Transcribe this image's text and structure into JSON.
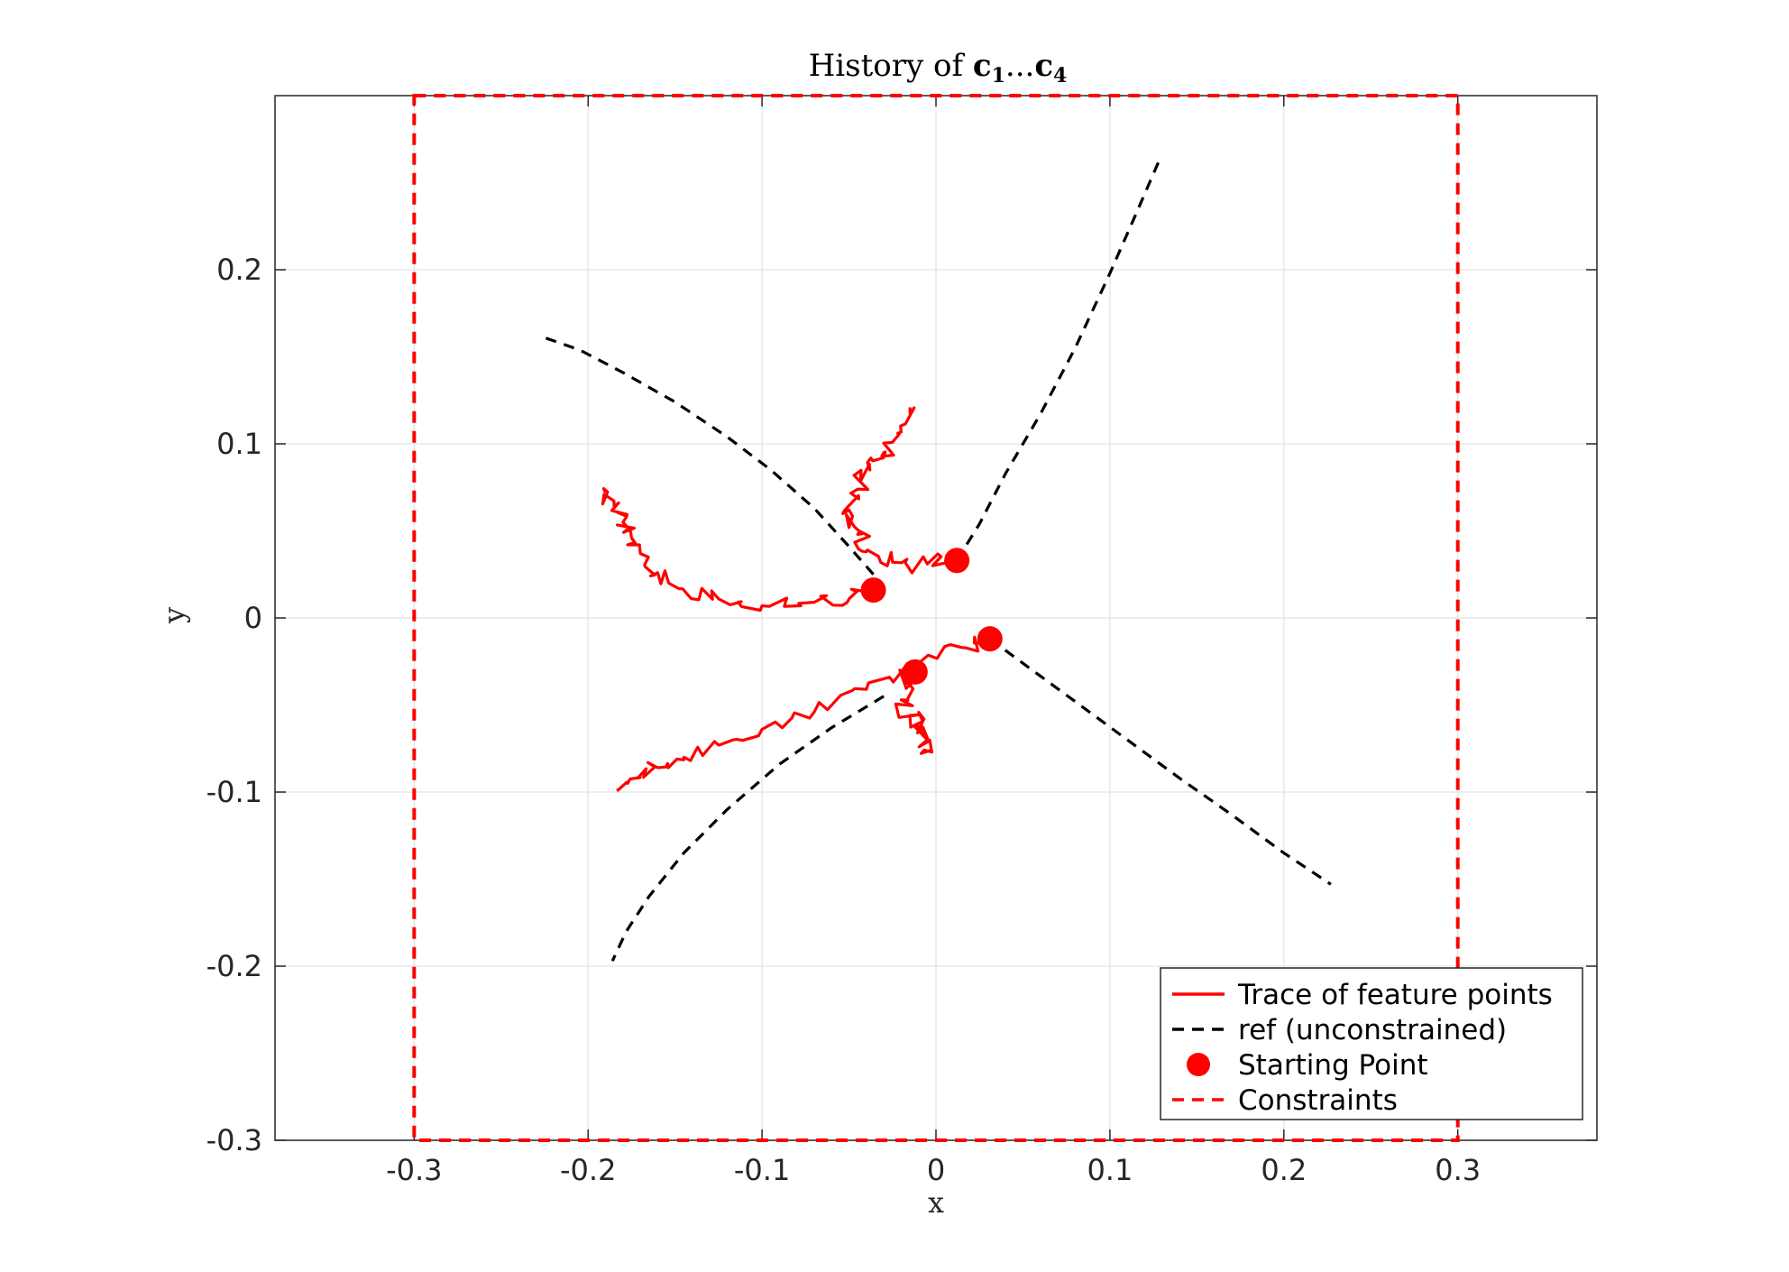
{
  "chart_data": {
    "type": "line",
    "title": {
      "prefix": "History of ",
      "first": "c",
      "first_sub": "1",
      "sep": "...",
      "last": "c",
      "last_sub": "4"
    },
    "xlabel": "x",
    "ylabel": "y",
    "xlim": [
      -0.38,
      0.38
    ],
    "ylim": [
      -0.3,
      0.3
    ],
    "xticks": [
      -0.3,
      -0.2,
      -0.1,
      0,
      0.1,
      0.2,
      0.3
    ],
    "xtick_labels": [
      "-0.3",
      "-0.2",
      "-0.1",
      "0",
      "0.1",
      "0.2",
      "0.3"
    ],
    "yticks": [
      -0.3,
      -0.2,
      -0.1,
      0,
      0.1,
      0.2
    ],
    "ytick_labels": [
      "-0.3",
      "-0.2",
      "-0.1",
      "0",
      "0.1",
      "0.2"
    ],
    "grid": true,
    "legend_position": "bottom-right",
    "legend": [
      {
        "label": "Trace of feature points",
        "style": "solid-line",
        "color": "#ff0000"
      },
      {
        "label": "ref (unconstrained)",
        "style": "dashed-line",
        "color": "#000000"
      },
      {
        "label": "Starting Point",
        "style": "marker",
        "color": "#ff0000"
      },
      {
        "label": "Constraints",
        "style": "dashed-line",
        "color": "#ff0000"
      }
    ],
    "series": [
      {
        "name": "Trace of feature points",
        "color": "#ff0000",
        "paths": [
          {
            "x": [
              -0.036,
              -0.05,
              -0.07,
              -0.1,
              -0.125,
              -0.145,
              -0.16,
              -0.17,
              -0.175,
              -0.18,
              -0.185,
              -0.19
            ],
            "y": [
              0.016,
              0.011,
              0.009,
              0.007,
              0.011,
              0.016,
              0.026,
              0.037,
              0.046,
              0.055,
              0.064,
              0.072
            ],
            "jitter": 0.005
          },
          {
            "x": [
              0.012,
              -0.005,
              -0.025,
              -0.04,
              -0.045,
              -0.05,
              -0.045,
              -0.038,
              -0.03,
              -0.022,
              -0.015
            ],
            "y": [
              0.033,
              0.031,
              0.032,
              0.038,
              0.048,
              0.062,
              0.074,
              0.085,
              0.095,
              0.106,
              0.121
            ],
            "jitter": 0.0055
          },
          {
            "x": [
              0.031,
              0.015,
              -0.01,
              -0.04,
              -0.07,
              -0.1,
              -0.125,
              -0.145,
              -0.16,
              -0.172,
              -0.183
            ],
            "y": [
              -0.012,
              -0.017,
              -0.026,
              -0.041,
              -0.054,
              -0.064,
              -0.073,
              -0.08,
              -0.086,
              -0.092,
              -0.098
            ],
            "jitter": 0.004
          },
          {
            "x": [
              -0.012,
              -0.018,
              -0.02,
              -0.015,
              -0.008,
              -0.005,
              -0.003
            ],
            "y": [
              -0.031,
              -0.038,
              -0.047,
              -0.056,
              -0.064,
              -0.07,
              -0.076
            ],
            "jitter": 0.006
          }
        ]
      },
      {
        "name": "ref (unconstrained)",
        "color": "#000000",
        "paths": [
          {
            "x": [
              -0.036,
              -0.05,
              -0.07,
              -0.095,
              -0.12,
              -0.15,
              -0.18,
              -0.205,
              -0.228
            ],
            "y": [
              0.025,
              0.041,
              0.063,
              0.085,
              0.104,
              0.124,
              0.141,
              0.154,
              0.162
            ]
          },
          {
            "x": [
              0.012,
              0.025,
              0.04,
              0.06,
              0.08,
              0.1,
              0.115,
              0.128
            ],
            "y": [
              0.033,
              0.054,
              0.083,
              0.117,
              0.155,
              0.198,
              0.232,
              0.262
            ]
          },
          {
            "x": [
              0.031,
              0.05,
              0.08,
              0.11,
              0.14,
              0.17,
              0.2,
              0.227
            ],
            "y": [
              -0.012,
              -0.026,
              -0.048,
              -0.07,
              -0.092,
              -0.113,
              -0.135,
              -0.153
            ]
          },
          {
            "x": [
              -0.03,
              -0.06,
              -0.09,
              -0.12,
              -0.145,
              -0.165,
              -0.178,
              -0.186
            ],
            "y": [
              -0.045,
              -0.063,
              -0.084,
              -0.11,
              -0.135,
              -0.16,
              -0.18,
              -0.197
            ]
          }
        ]
      }
    ],
    "starting_points": {
      "x": [
        -0.036,
        0.012,
        0.031,
        -0.012
      ],
      "y": [
        0.016,
        0.033,
        -0.012,
        -0.031
      ]
    },
    "constraints": {
      "x": [
        -0.3,
        0.3
      ],
      "y": [
        -0.3,
        0.3
      ]
    }
  }
}
